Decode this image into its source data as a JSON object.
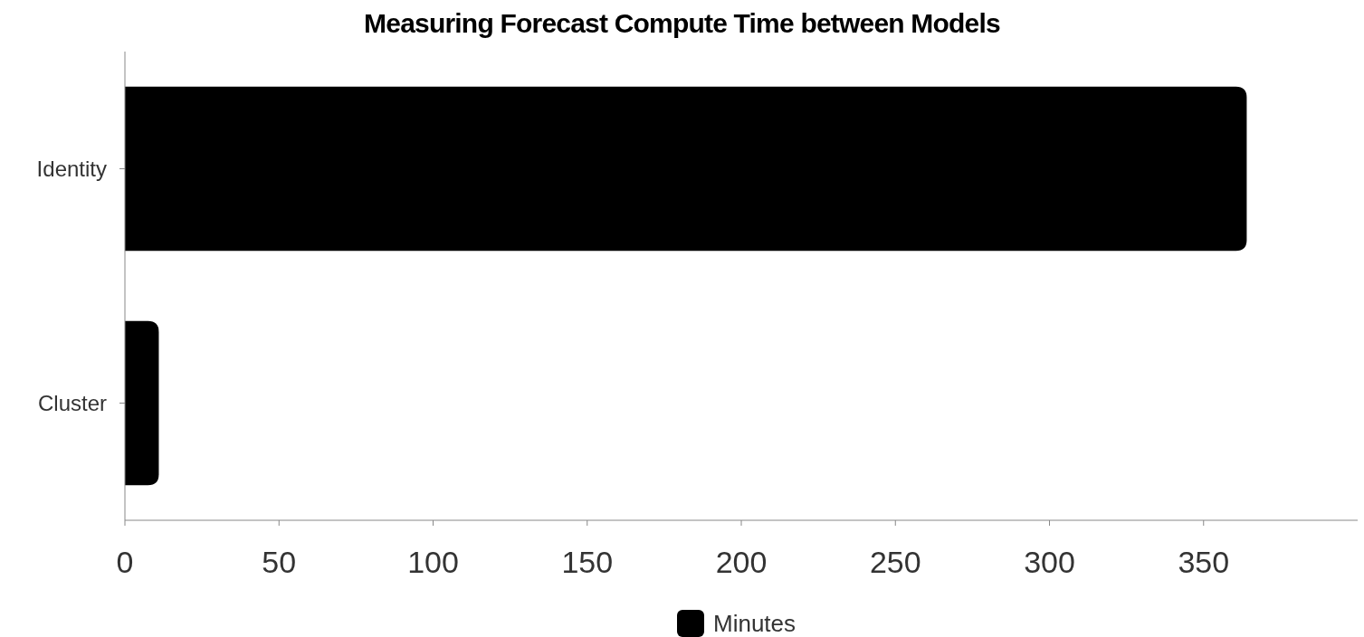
{
  "chart_data": {
    "type": "bar",
    "orientation": "horizontal",
    "title": "Measuring Forecast Compute Time between Models",
    "categories": [
      "Identity",
      "Cluster"
    ],
    "series": [
      {
        "name": "Minutes",
        "color": "#000000",
        "values": [
          364,
          11
        ]
      }
    ],
    "xlim": [
      0,
      400
    ],
    "xticks": [
      0,
      50,
      100,
      150,
      200,
      250,
      300,
      350
    ],
    "grid": false,
    "legend": "bottom"
  }
}
